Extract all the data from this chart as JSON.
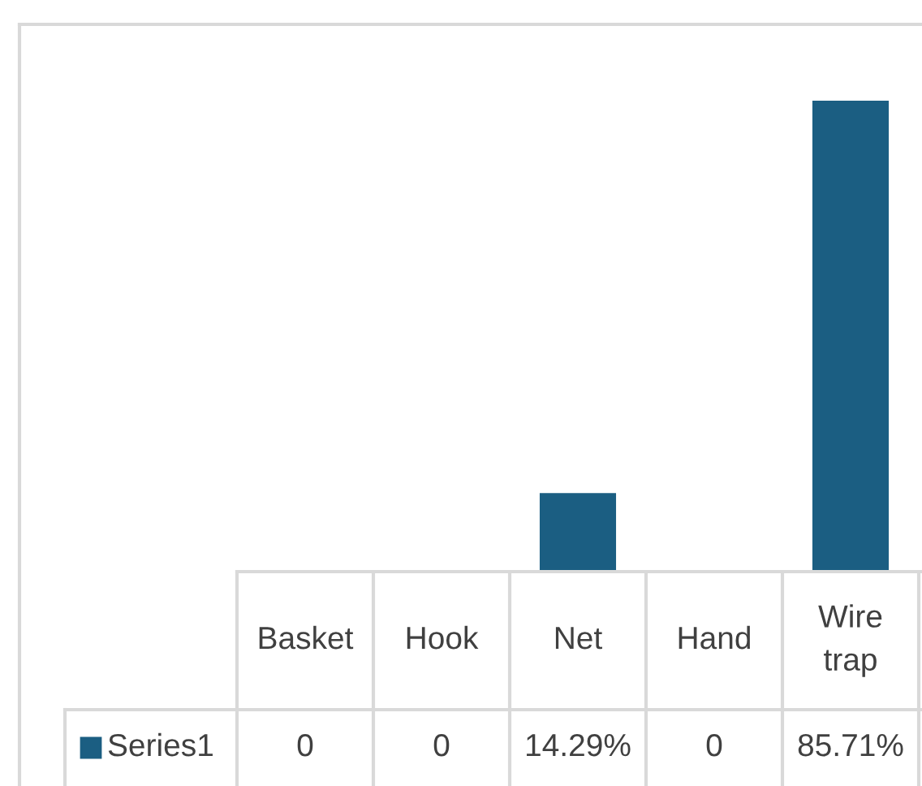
{
  "chart_data": {
    "type": "bar",
    "categories": [
      "Basket",
      "Hook",
      "Net",
      "Hand",
      "Wire trap"
    ],
    "series": [
      {
        "name": "Series1",
        "color": "#1b5e82",
        "values": [
          0,
          0,
          14.29,
          0,
          85.71
        ],
        "value_labels": [
          "0",
          "0",
          "14.29%",
          "0",
          "85.71%"
        ]
      }
    ],
    "legend": "bottom"
  }
}
